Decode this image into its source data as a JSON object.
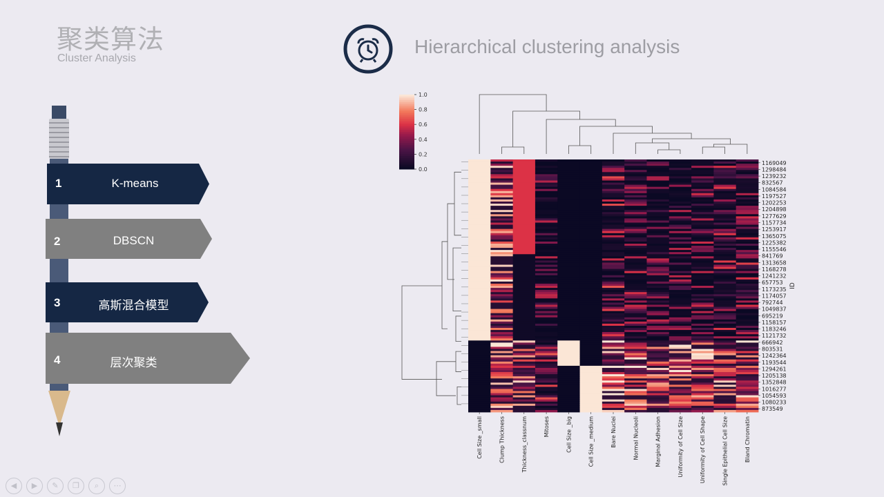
{
  "header": {
    "title_cn": "聚类算法",
    "title_en": "Cluster Analysis",
    "main_title": "Hierarchical clustering analysis",
    "clock_icon": "alarm-clock-icon"
  },
  "menu": [
    {
      "num": "1",
      "label": "K-means"
    },
    {
      "num": "2",
      "label": "DBSCN"
    },
    {
      "num": "3",
      "label": "高斯混合模型"
    },
    {
      "num": "4",
      "label": "层次聚类"
    }
  ],
  "colors": {
    "navy": "#152744",
    "gray": "#808080",
    "heat_low": "#0b0924",
    "heat_high": "#fbe6d6"
  },
  "chart_data": {
    "type": "heatmap",
    "colorbar_ticks": [
      "1.0",
      "0.8",
      "0.6",
      "0.4",
      "0.2",
      "0.0"
    ],
    "columns": [
      "Cell Size _small",
      "Clump Thickness",
      "Thickness_classnum",
      "Mitoses",
      "Cell Size _big",
      "Cell Size _medium",
      "Bare Nuclei",
      "Normal Nucleoli",
      "Marginal Adhesion",
      "Uniformity of Cell Size",
      "Uniformity of Cell Shape",
      "Single Epithelial Cell Size",
      "Bland Chromatin"
    ],
    "row_labels": [
      "1169049",
      "1298484",
      "1239232",
      "832567",
      "1084584",
      "1197527",
      "1202253",
      "1204898",
      "1277629",
      "1157734",
      "1253917",
      "1365075",
      "1225382",
      "1155546",
      "841769",
      "1313658",
      "1168278",
      "1241232",
      "657753",
      "1173235",
      "1174057",
      "792744",
      "1049837",
      "695219",
      "1158157",
      "1183246",
      "1121732",
      "666942",
      "803531",
      "1242364",
      "1193544",
      "1294261",
      "1205138",
      "1352848",
      "1016277",
      "1054593",
      "1080233",
      "873549"
    ],
    "y_axis_label": "ID",
    "clusters": [
      {
        "rows_fraction": 0.72,
        "column_levels": [
          1.0,
          0.55,
          0.6,
          0.1,
          0.0,
          0.0,
          0.3,
          0.15,
          0.15,
          0.1,
          0.15,
          0.2,
          0.2
        ]
      },
      {
        "rows_fraction": 0.28,
        "column_levels": [
          0.0,
          0.6,
          0.55,
          0.3,
          0.35,
          0.65,
          0.7,
          0.6,
          0.55,
          0.75,
          0.6,
          0.55,
          0.55
        ]
      }
    ]
  },
  "toolbar": {
    "icons": [
      "prev-icon",
      "next-icon",
      "pen-icon",
      "copy-icon",
      "zoom-icon",
      "more-icon"
    ]
  }
}
